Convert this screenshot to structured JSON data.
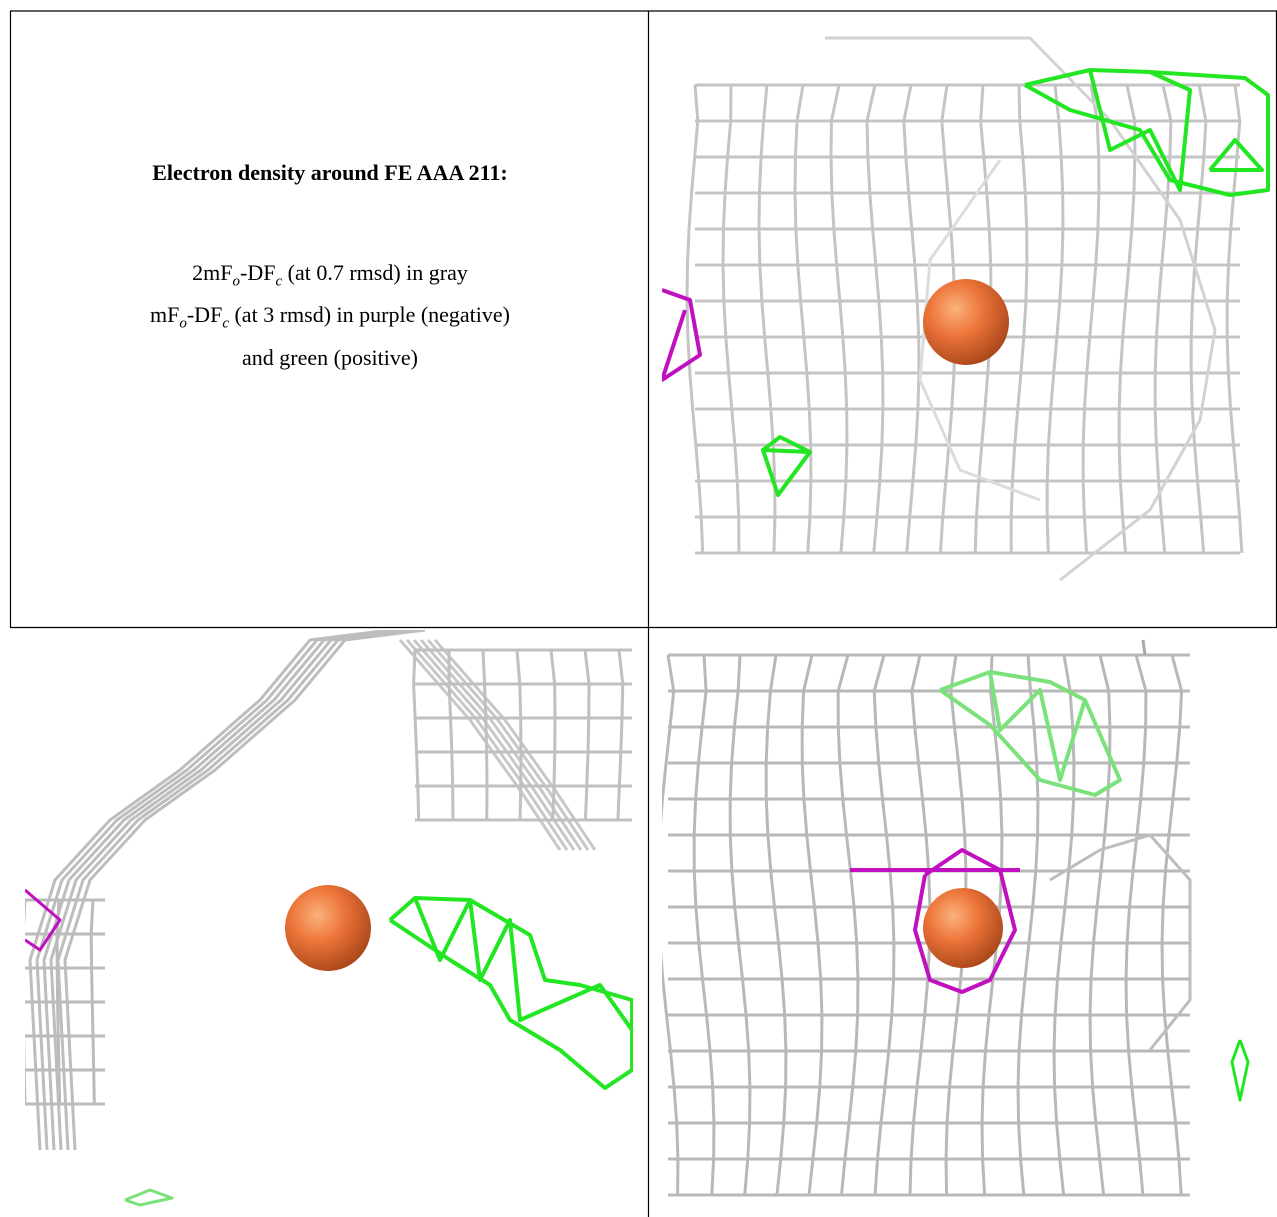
{
  "caption": {
    "title": "Electron density around FE AAA 211:",
    "lines": [
      {
        "parts": [
          "2mF",
          "o",
          "-DF",
          "c",
          " (at 0.7 rmsd) in gray"
        ]
      },
      {
        "parts": [
          "mF",
          "o",
          "-DF",
          "c",
          " (at 3 rmsd) in purple (negative)"
        ]
      },
      {
        "parts": [
          "and green (positive)"
        ]
      }
    ]
  }
}
